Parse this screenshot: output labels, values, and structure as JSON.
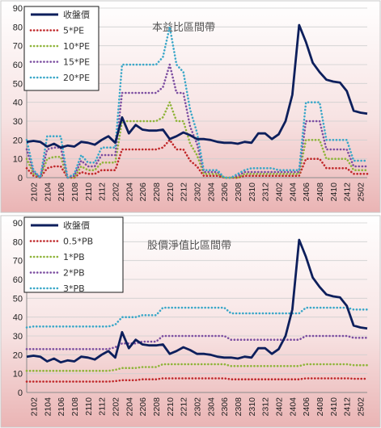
{
  "chart_data": [
    {
      "type": "line",
      "title": "本益比區間帶",
      "ylim": [
        0,
        90
      ],
      "yticks": [
        0,
        10,
        20,
        30,
        40,
        50,
        60,
        70,
        80,
        90
      ],
      "x": [
        "2101",
        "2102",
        "2103",
        "2104",
        "2105",
        "2106",
        "2107",
        "2108",
        "2109",
        "2110",
        "2111",
        "2112",
        "2201",
        "2202",
        "2203",
        "2204",
        "2205",
        "2206",
        "2207",
        "2208",
        "2209",
        "2210",
        "2211",
        "2212",
        "2301",
        "2302",
        "2303",
        "2304",
        "2305",
        "2306",
        "2307",
        "2308",
        "2309",
        "2310",
        "2311",
        "2312",
        "2401",
        "2402",
        "2403",
        "2404",
        "2405",
        "2406",
        "2407",
        "2408",
        "2409",
        "2410",
        "2411",
        "2412",
        "2501",
        "2502",
        "2503"
      ],
      "xtick_labels": [
        "2102",
        "2104",
        "2106",
        "2108",
        "2110",
        "2112",
        "2202",
        "2204",
        "2206",
        "2208",
        "2210",
        "2212",
        "2302",
        "2304",
        "2306",
        "2308",
        "2310",
        "2312",
        "2402",
        "2404",
        "2406",
        "2408",
        "2410",
        "2412",
        "2502"
      ],
      "legend_position": "top-left",
      "grid": true,
      "series": [
        {
          "name": "收盤價",
          "color": "#0d1f5c",
          "style": "solid",
          "values": [
            19,
            19.5,
            19,
            16.5,
            18,
            16,
            17,
            16.5,
            19,
            18.5,
            17.5,
            20,
            22,
            18.5,
            32,
            23.5,
            28,
            25.5,
            25,
            25,
            25.5,
            20.5,
            22,
            24,
            22.5,
            20.5,
            20.5,
            20,
            19,
            18.5,
            18.5,
            18,
            19,
            18.5,
            23.5,
            23.5,
            20.5,
            23,
            30,
            44,
            81,
            72,
            61,
            56,
            52,
            51,
            50.5,
            46,
            35.5,
            34.5,
            34
          ]
        },
        {
          "name": "5*PE",
          "color": "#c0282a",
          "style": "dotted",
          "values": [
            5,
            1,
            0,
            5,
            6,
            6,
            0,
            0,
            3,
            2,
            2,
            4,
            4,
            4,
            15,
            15,
            15,
            15,
            15,
            15,
            16,
            20,
            15,
            15,
            9,
            6,
            1,
            1,
            1,
            0,
            0,
            0,
            1,
            1,
            1,
            1,
            1,
            1,
            1,
            1,
            1,
            10,
            10,
            10,
            5,
            5,
            5,
            5,
            2,
            2,
            2
          ]
        },
        {
          "name": "10*PE",
          "color": "#8fb43a",
          "style": "dotted",
          "values": [
            10,
            2,
            0,
            10,
            11,
            11,
            0,
            0,
            6,
            4,
            4,
            8,
            8,
            8,
            30,
            30,
            30,
            30,
            30,
            30,
            32,
            40,
            30,
            30,
            18,
            12,
            2,
            2,
            2,
            0,
            0,
            0,
            2,
            2,
            2,
            2,
            2,
            2,
            2,
            2,
            2,
            20,
            20,
            20,
            10,
            10,
            10,
            10,
            4,
            4,
            4
          ]
        },
        {
          "name": "15*PE",
          "color": "#7c4ea1",
          "style": "dotted",
          "values": [
            15,
            3,
            0,
            15,
            16,
            16,
            0,
            1,
            9,
            6,
            6,
            12,
            12,
            12,
            45,
            45,
            45,
            45,
            45,
            45,
            48,
            60,
            45,
            45,
            27,
            18,
            3,
            3,
            3,
            0,
            0,
            1,
            3,
            3,
            3,
            3,
            3,
            3,
            3,
            3,
            3,
            30,
            30,
            30,
            15,
            15,
            15,
            15,
            6,
            6,
            6
          ]
        },
        {
          "name": "20*PE",
          "color": "#3aa7c8",
          "style": "dotted",
          "values": [
            20,
            4,
            0,
            22,
            22,
            22,
            0,
            2,
            12,
            8,
            8,
            16,
            16,
            16,
            60,
            60,
            60,
            60,
            60,
            60,
            64,
            80,
            60,
            56,
            36,
            24,
            4,
            4,
            4,
            0,
            0,
            2,
            4,
            5,
            5,
            5,
            5,
            4,
            4,
            4,
            4,
            40,
            40,
            40,
            20,
            20,
            20,
            20,
            9,
            9,
            9
          ]
        }
      ]
    },
    {
      "type": "line",
      "title": "股價淨值比區間帶",
      "ylim": [
        0,
        90
      ],
      "yticks": [
        0,
        10,
        20,
        30,
        40,
        50,
        60,
        70,
        80,
        90
      ],
      "x": [
        "2101",
        "2102",
        "2103",
        "2104",
        "2105",
        "2106",
        "2107",
        "2108",
        "2109",
        "2110",
        "2111",
        "2112",
        "2201",
        "2202",
        "2203",
        "2204",
        "2205",
        "2206",
        "2207",
        "2208",
        "2209",
        "2210",
        "2211",
        "2212",
        "2301",
        "2302",
        "2303",
        "2304",
        "2305",
        "2306",
        "2307",
        "2308",
        "2309",
        "2310",
        "2311",
        "2312",
        "2401",
        "2402",
        "2403",
        "2404",
        "2405",
        "2406",
        "2407",
        "2408",
        "2409",
        "2410",
        "2411",
        "2412",
        "2501",
        "2502",
        "2503"
      ],
      "xtick_labels": [
        "2102",
        "2104",
        "2106",
        "2108",
        "2110",
        "2112",
        "2202",
        "2204",
        "2206",
        "2208",
        "2210",
        "2212",
        "2302",
        "2304",
        "2306",
        "2308",
        "2310",
        "2312",
        "2402",
        "2404",
        "2406",
        "2408",
        "2410",
        "2412",
        "2502"
      ],
      "legend_position": "top-left",
      "grid": true,
      "series": [
        {
          "name": "收盤價",
          "color": "#0d1f5c",
          "style": "solid",
          "values": [
            19,
            19.5,
            19,
            16.5,
            18,
            16,
            17,
            16.5,
            19,
            18.5,
            17.5,
            20,
            22,
            18.5,
            32,
            23.5,
            28,
            25.5,
            25,
            25,
            25.5,
            20.5,
            22,
            24,
            22.5,
            20.5,
            20.5,
            20,
            19,
            18.5,
            18.5,
            18,
            19,
            18.5,
            23.5,
            23.5,
            20.5,
            23,
            30,
            44,
            81,
            72,
            61,
            56,
            52,
            51,
            50.5,
            46,
            35.5,
            34.5,
            34
          ]
        },
        {
          "name": "0.5*PB",
          "color": "#c0282a",
          "style": "dotted",
          "values": [
            5.8,
            5.8,
            5.8,
            5.8,
            5.8,
            5.8,
            5.8,
            5.8,
            5.8,
            5.8,
            5.8,
            5.8,
            5.8,
            6,
            6.5,
            6.5,
            6.5,
            7,
            7,
            7,
            7.5,
            7.5,
            7.5,
            7.5,
            7.5,
            7.5,
            7.5,
            7.5,
            7.5,
            7.5,
            7,
            7,
            7,
            7,
            7,
            7,
            7,
            7,
            7,
            7,
            7,
            7.5,
            7.5,
            7.5,
            7.5,
            7.5,
            7.5,
            7.5,
            7.3,
            7.3,
            7.3
          ]
        },
        {
          "name": "1*PB",
          "color": "#8fb43a",
          "style": "dotted",
          "values": [
            11.5,
            11.5,
            11.5,
            11.5,
            11.5,
            11.5,
            11.5,
            11.5,
            11.5,
            11.5,
            11.5,
            11.5,
            11.5,
            12,
            13,
            13,
            13,
            13.5,
            13.5,
            13.5,
            15,
            15,
            15,
            15,
            15,
            15,
            15,
            15,
            15,
            15,
            14,
            14,
            14,
            14,
            14,
            14,
            14,
            14,
            14,
            14,
            14,
            15,
            15,
            15,
            15,
            15,
            15,
            15,
            14.5,
            14.5,
            14.5
          ]
        },
        {
          "name": "2*PB",
          "color": "#7c4ea1",
          "style": "dotted",
          "values": [
            23,
            23,
            23,
            23,
            23,
            23,
            23,
            23,
            23,
            23,
            23,
            23,
            23,
            24,
            26,
            26,
            26,
            27,
            27,
            27,
            30,
            30,
            30,
            30,
            30,
            30,
            30,
            30,
            30,
            30,
            28,
            28,
            28,
            28,
            28,
            28,
            28,
            28,
            28,
            28,
            28,
            30,
            30,
            30,
            30,
            30,
            30,
            30,
            29,
            29,
            29
          ]
        },
        {
          "name": "3*PB",
          "color": "#3aa7c8",
          "style": "dotted",
          "values": [
            34.5,
            35,
            35,
            35,
            35,
            35,
            35,
            35,
            35,
            35,
            35,
            35,
            35,
            36,
            40,
            40,
            40,
            41,
            41,
            41,
            45,
            45,
            45,
            45,
            45,
            45,
            45,
            45,
            45,
            45,
            42,
            42,
            42,
            42,
            42,
            42,
            42,
            42,
            42,
            42,
            42,
            45,
            45,
            45,
            45,
            45,
            45,
            45,
            44,
            44,
            44
          ]
        }
      ]
    }
  ]
}
